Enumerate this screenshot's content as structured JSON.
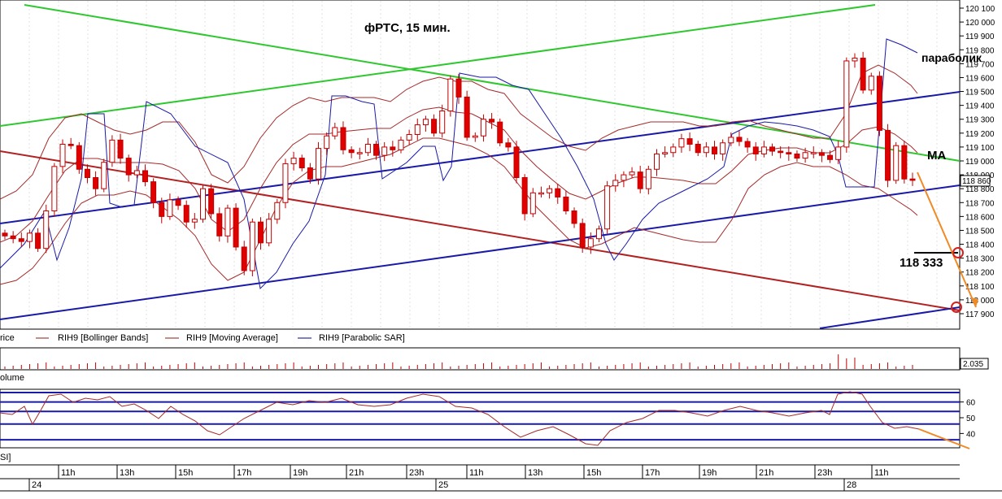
{
  "chart_data": {
    "type": "candlestick",
    "title": "фРТС,  15 мин.",
    "price_axis": {
      "ylim": [
        117800,
        120150
      ],
      "ticks": [
        "120 100",
        "120 000",
        "119 900",
        "119 800",
        "119 700",
        "119 600",
        "119 500",
        "119 400",
        "119 300",
        "119 200",
        "119 100",
        "119 000",
        "118 900",
        "118 800",
        "118 700",
        "118 600",
        "118 500",
        "118 400",
        "118 300",
        "118 200",
        "118 100",
        "118 000",
        "117 900"
      ],
      "tick_values": [
        120100,
        120000,
        119900,
        119800,
        119700,
        119600,
        119500,
        119400,
        119300,
        119200,
        119100,
        119000,
        118900,
        118800,
        118700,
        118600,
        118500,
        118400,
        118300,
        118200,
        118100,
        118000,
        117900
      ],
      "last_price_label": "118 860",
      "last_price": 118860
    },
    "annotations": {
      "parabolic_label": "параболик",
      "ma_label": "MA",
      "target_label": "118 333",
      "target_value": 118333,
      "second_target_value": 117925
    },
    "legend": [
      {
        "text": "rice",
        "color": "#000000"
      },
      {
        "text": "RIH9 [Bollinger Bands]",
        "color": "#8b1a1a"
      },
      {
        "text": "RIH9 [Moving Average]",
        "color": "#8b1a1a"
      },
      {
        "text": "RIH9 [Parabolic SAR]",
        "color": "#00008b"
      }
    ],
    "volume_panel": {
      "label": "olume",
      "value_label": "2.035"
    },
    "rsi_panel": {
      "label": "SI]",
      "ticks": [
        "60",
        "50",
        "40"
      ],
      "tick_values": [
        60,
        50,
        40
      ],
      "levels": [
        60,
        54,
        46,
        36
      ]
    },
    "time_axis": {
      "hour_labels": [
        "11h",
        "13h",
        "15h",
        "17h",
        "19h",
        "21h",
        "23h",
        "11h",
        "13h",
        "15h",
        "17h",
        "19h",
        "21h",
        "23h",
        "11h"
      ],
      "day_labels": [
        "24",
        "25",
        "28"
      ]
    },
    "candle_closes": [
      118460,
      118440,
      118420,
      118480,
      118370,
      118640,
      118960,
      119120,
      119110,
      118940,
      118880,
      118800,
      118990,
      119150,
      119020,
      118900,
      118930,
      118850,
      118700,
      118600,
      118720,
      118680,
      118560,
      118580,
      118800,
      118620,
      118460,
      118660,
      118380,
      118210,
      118560,
      118410,
      118580,
      118700,
      118980,
      119020,
      118950,
      118870,
      119090,
      119180,
      119240,
      119080,
      119060,
      119060,
      119120,
      119040,
      119100,
      119080,
      119150,
      119190,
      119260,
      119300,
      119200,
      119360,
      119590,
      119460,
      119170,
      119180,
      119300,
      119280,
      119130,
      119100,
      118880,
      118620,
      118770,
      118770,
      118800,
      118740,
      118640,
      118550,
      118380,
      118440,
      118510,
      118820,
      118860,
      118900,
      118920,
      118800,
      118940,
      119050,
      119060,
      119100,
      119160,
      119120,
      119060,
      119100,
      119050,
      119130,
      119170,
      119140,
      119100,
      119050,
      119100,
      119070,
      119060,
      119050,
      119020,
      119060,
      119060,
      119040,
      119010,
      119100,
      119720,
      119740,
      119510,
      119610,
      119220,
      118860,
      119110,
      118870,
      118860
    ]
  }
}
